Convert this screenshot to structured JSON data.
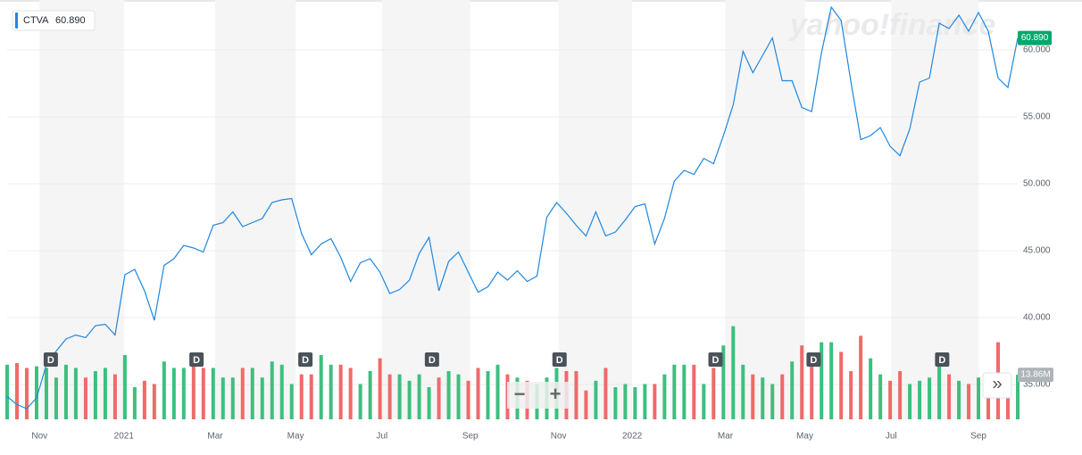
{
  "chart_data": {
    "type": "line",
    "watermark": "yahoo!finance",
    "series": [
      {
        "name": "CTVA",
        "color": "#1f87e0",
        "values": [
          34.1,
          33.5,
          33.2,
          34.0,
          36.5,
          37.5,
          38.4,
          38.7,
          38.5,
          39.4,
          39.5,
          38.7,
          43.2,
          43.6,
          42.0,
          39.8,
          43.9,
          44.4,
          45.4,
          45.2,
          44.9,
          46.9,
          47.1,
          47.9,
          46.8,
          47.1,
          47.4,
          48.6,
          48.8,
          48.9,
          46.3,
          44.7,
          45.5,
          45.9,
          44.5,
          42.7,
          44.1,
          44.4,
          43.4,
          41.8,
          42.1,
          42.8,
          44.8,
          46.0,
          42.0,
          44.2,
          44.9,
          43.4,
          41.9,
          42.3,
          43.4,
          42.8,
          43.5,
          42.7,
          43.1,
          47.5,
          48.6,
          47.8,
          46.9,
          46.1,
          47.9,
          46.1,
          46.4,
          47.3,
          48.3,
          48.5,
          45.5,
          47.4,
          50.2,
          51.0,
          50.7,
          51.9,
          51.5,
          53.6,
          55.9,
          59.9,
          58.3,
          59.6,
          60.9,
          57.7,
          57.7,
          55.7,
          55.4,
          59.8,
          63.2,
          62.2,
          57.6,
          53.3,
          53.6,
          54.2,
          52.8,
          52.1,
          54.1,
          57.6,
          57.9,
          62.0,
          61.6,
          62.6,
          61.4,
          62.8,
          61.4,
          57.9,
          57.2,
          60.89
        ]
      }
    ],
    "x": [
      0,
      1,
      2,
      3,
      4,
      5,
      6,
      7,
      8,
      9,
      10,
      11,
      12,
      13,
      14,
      15,
      16,
      17,
      18,
      19,
      20,
      21,
      22,
      23,
      24,
      25,
      26,
      27,
      28,
      29,
      30,
      31,
      32,
      33,
      34,
      35,
      36,
      37,
      38,
      39,
      40,
      41,
      42,
      43,
      44,
      45,
      46,
      47,
      48,
      49,
      50,
      51,
      52,
      53,
      54,
      55,
      56,
      57,
      58,
      59,
      60,
      61,
      62,
      63,
      64,
      65,
      66,
      67,
      68,
      69,
      70,
      71,
      72,
      73,
      74,
      75,
      76,
      77,
      78,
      79,
      80,
      81,
      82,
      83,
      84,
      85,
      86,
      87,
      88,
      89,
      90,
      91,
      92,
      93,
      94,
      95,
      96,
      97,
      98,
      99,
      100,
      101,
      102,
      103
    ],
    "current_price": {
      "value": 60.89,
      "label": "60.890"
    },
    "volume": {
      "up_color": "#3dbf7e",
      "down_color": "#ef6a6a",
      "ylim": [
        0,
        30
      ],
      "values": [
        17,
        17.5,
        16,
        16.5,
        16,
        13,
        17,
        16,
        13,
        15,
        16,
        14,
        20,
        10,
        12,
        11,
        18,
        16,
        16,
        19,
        16,
        16,
        13,
        13,
        16,
        16,
        13,
        18,
        17,
        11,
        14,
        14,
        20,
        17,
        17,
        16,
        11,
        15,
        19,
        14,
        14,
        12,
        14,
        10,
        13,
        15,
        14,
        12,
        16,
        15,
        17,
        14,
        13,
        12,
        11,
        13,
        16,
        15,
        15,
        9,
        12,
        16,
        10,
        11,
        10,
        11,
        11,
        14,
        17,
        17,
        17,
        11,
        16,
        23,
        29,
        17,
        14,
        13,
        11,
        14,
        18,
        23,
        20,
        24,
        24,
        21,
        15,
        26,
        19,
        14,
        12,
        15,
        11,
        12,
        13,
        17,
        14,
        12,
        11,
        13,
        11,
        24,
        11,
        13.86
      ],
      "current": {
        "value": 13.86,
        "label": "13.86M"
      }
    },
    "events": [
      {
        "label": "D",
        "x": 4.45
      },
      {
        "label": "D",
        "x": 19.3
      },
      {
        "label": "D",
        "x": 30.4
      },
      {
        "label": "D",
        "x": 43.3
      },
      {
        "label": "D",
        "x": 56.3
      },
      {
        "label": "D",
        "x": 72.2
      },
      {
        "label": "D",
        "x": 82.2
      },
      {
        "label": "D",
        "x": 95.3
      }
    ],
    "controls": [
      "−",
      "+",
      "»"
    ],
    "xlim": [
      0,
      103
    ],
    "xticks": [
      {
        "value": 3.3,
        "label": "Nov"
      },
      {
        "value": 11.9,
        "label": "2021"
      },
      {
        "value": 21.2,
        "label": "Mar"
      },
      {
        "value": 29.4,
        "label": "May"
      },
      {
        "value": 38.2,
        "label": "Jul"
      },
      {
        "value": 47.2,
        "label": "Sep"
      },
      {
        "value": 56.2,
        "label": "Nov"
      },
      {
        "value": 63.7,
        "label": "2022"
      },
      {
        "value": 73.2,
        "label": "Mar"
      },
      {
        "value": 81.3,
        "label": "May"
      },
      {
        "value": 90.1,
        "label": "Jul"
      },
      {
        "value": 99.0,
        "label": "Sep"
      }
    ],
    "ylim": [
      32.4,
      63.73
    ],
    "yticks": [
      {
        "value": 35,
        "label": "35.000"
      },
      {
        "value": 40,
        "label": "40.000"
      },
      {
        "value": 45,
        "label": "45.000"
      },
      {
        "value": 50,
        "label": "50.000"
      },
      {
        "value": 55,
        "label": "55.000"
      },
      {
        "value": 60,
        "label": "60.000"
      }
    ],
    "grid": true
  }
}
